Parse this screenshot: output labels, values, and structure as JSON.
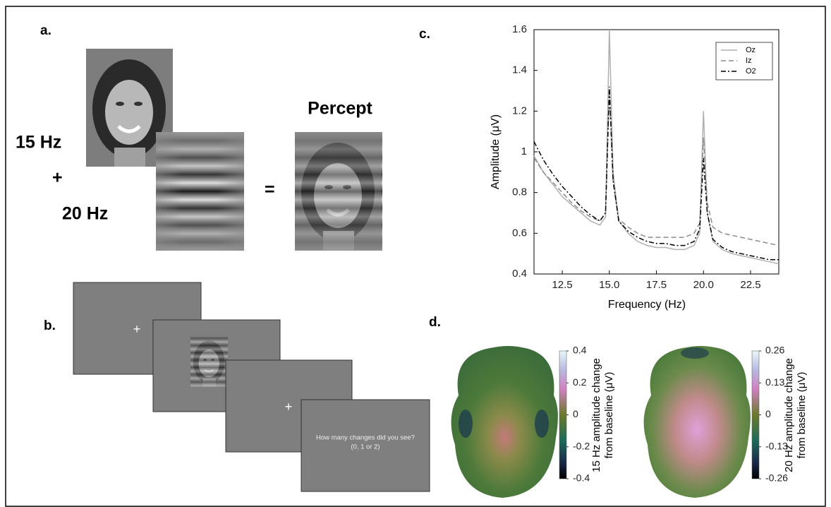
{
  "panel_labels": [
    "a.",
    "b.",
    "c.",
    "d."
  ],
  "panel_a": {
    "left_labels": [
      "15 Hz",
      "+",
      "20 Hz"
    ],
    "equals": "=",
    "percept_title": "Percept"
  },
  "panel_b": {
    "fixation": "+",
    "question": [
      "How  many changes did you see?",
      "(0, 1 or 2)"
    ]
  },
  "chart_data": {
    "type": "line",
    "xlabel": "Frequency (Hz)",
    "ylabel": "Amplitude (μV)",
    "x": [
      11,
      11.5,
      12,
      12.5,
      13,
      13.5,
      14,
      14.5,
      14.8,
      15,
      15.2,
      15.5,
      16,
      16.5,
      17,
      17.5,
      18,
      18.5,
      19,
      19.5,
      19.8,
      20,
      20.2,
      20.5,
      21,
      21.5,
      22,
      22.5,
      23,
      23.5,
      24
    ],
    "series": [
      {
        "name": "Oz",
        "color": "#b0b0b0",
        "dash": "solid",
        "values": [
          0.98,
          0.9,
          0.84,
          0.78,
          0.74,
          0.7,
          0.66,
          0.64,
          0.68,
          1.6,
          0.9,
          0.66,
          0.6,
          0.56,
          0.54,
          0.53,
          0.53,
          0.52,
          0.52,
          0.54,
          0.6,
          1.2,
          0.7,
          0.56,
          0.52,
          0.5,
          0.49,
          0.48,
          0.47,
          0.46,
          0.45
        ]
      },
      {
        "name": "Iz",
        "color": "#8c8c8c",
        "dash": "dashed",
        "values": [
          0.97,
          0.9,
          0.85,
          0.8,
          0.75,
          0.71,
          0.68,
          0.66,
          0.7,
          1.3,
          0.85,
          0.67,
          0.63,
          0.6,
          0.58,
          0.58,
          0.58,
          0.58,
          0.58,
          0.6,
          0.65,
          1.07,
          0.75,
          0.63,
          0.6,
          0.59,
          0.58,
          0.57,
          0.56,
          0.55,
          0.54
        ]
      },
      {
        "name": "O2",
        "color": "#000000",
        "dash": "dashdot",
        "values": [
          1.05,
          0.96,
          0.89,
          0.83,
          0.78,
          0.73,
          0.69,
          0.66,
          0.7,
          1.32,
          0.86,
          0.66,
          0.61,
          0.58,
          0.56,
          0.55,
          0.55,
          0.54,
          0.54,
          0.56,
          0.62,
          0.97,
          0.7,
          0.57,
          0.53,
          0.51,
          0.5,
          0.49,
          0.48,
          0.47,
          0.47
        ]
      }
    ],
    "xlim": [
      11,
      24
    ],
    "ylim": [
      0.4,
      1.6
    ],
    "xticks": [
      12.5,
      {
        "value": 15,
        "label": "15.0"
      },
      17.5,
      {
        "value": 20,
        "label": "20.0"
      },
      22.5
    ],
    "yticks": [
      0.4,
      0.6,
      0.8,
      1,
      1.2,
      1.4,
      1.6
    ],
    "legend": "upper right"
  },
  "panel_d": {
    "colorbars": [
      {
        "label": [
          "15 Hz amplitude change",
          "from baseline (μV)"
        ],
        "lim": [
          -0.4,
          0.4
        ],
        "ticks": [
          0.4,
          0.2,
          0,
          -0.2,
          -0.4
        ]
      },
      {
        "label": [
          "20 Hz amplitude change",
          "from baseline (μV)"
        ],
        "lim": [
          -0.26,
          0.26
        ],
        "ticks": [
          0.26,
          0.13,
          0,
          -0.13,
          -0.26
        ]
      }
    ]
  }
}
